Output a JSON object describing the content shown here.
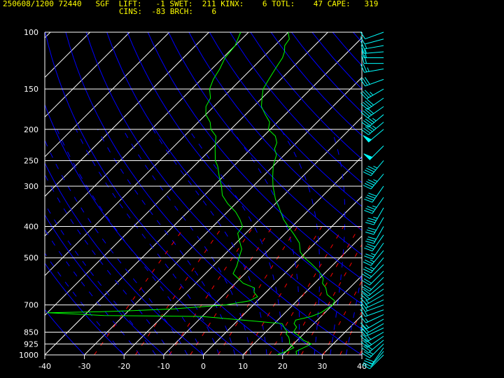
{
  "header": {
    "line1": "250608/1200 72440   SGF  LIFT:   -1 SWET:  211 KINX:    6 TOTL:    47 CAPE:   319",
    "line2": "CINS:  -83 BRCH:    6"
  },
  "colors": {
    "background": "#000000",
    "isobar": "#ffffff",
    "isotherm": "#ffffff",
    "dry_adiabat": "#0000ff",
    "moist_adiabat": "#0000ff",
    "mixing_ratio": "#ff0000",
    "temperature": "#00ff00",
    "dewpoint": "#00ff00",
    "wind_barbs": "#00ffff",
    "header_text": "#ffff00",
    "axis_text": "#ffffff"
  },
  "chart_data": {
    "type": "line",
    "subtype": "skew-t log-p",
    "xlabel": "",
    "ylabel": "",
    "xlim": [
      -40,
      40
    ],
    "ylim": [
      1000,
      100
    ],
    "x_ticks": [
      -40,
      -30,
      -20,
      -10,
      0,
      10,
      20,
      30,
      40
    ],
    "pressure_labels": [
      100,
      150,
      200,
      250,
      300,
      400,
      500,
      700,
      850,
      925,
      1000
    ],
    "series": [
      {
        "key": "temperature",
        "points": [
          [
            1000,
            23.5
          ],
          [
            975,
            22.5
          ],
          [
            950,
            23.5
          ],
          [
            925,
            24.5
          ],
          [
            900,
            21.5
          ],
          [
            870,
            19
          ],
          [
            850,
            17
          ],
          [
            820,
            16.5
          ],
          [
            800,
            15
          ],
          [
            780,
            14.5
          ],
          [
            760,
            17.5
          ],
          [
            740,
            19
          ],
          [
            720,
            19.5
          ],
          [
            700,
            20
          ],
          [
            680,
            19.5
          ],
          [
            650,
            16
          ],
          [
            620,
            14
          ],
          [
            600,
            12
          ],
          [
            580,
            11
          ],
          [
            550,
            8
          ],
          [
            520,
            4
          ],
          [
            500,
            1
          ],
          [
            480,
            -1.5
          ],
          [
            450,
            -4
          ],
          [
            420,
            -8
          ],
          [
            400,
            -11
          ],
          [
            380,
            -14
          ],
          [
            350,
            -18
          ],
          [
            330,
            -21
          ],
          [
            300,
            -25
          ],
          [
            280,
            -27.5
          ],
          [
            260,
            -30
          ],
          [
            250,
            -31
          ],
          [
            240,
            -32
          ],
          [
            230,
            -34
          ],
          [
            220,
            -35
          ],
          [
            210,
            -37
          ],
          [
            200,
            -40.5
          ],
          [
            190,
            -42
          ],
          [
            180,
            -45
          ],
          [
            170,
            -48
          ],
          [
            160,
            -50
          ],
          [
            150,
            -52
          ],
          [
            140,
            -53
          ],
          [
            130,
            -54
          ],
          [
            120,
            -55
          ],
          [
            115,
            -56
          ],
          [
            110,
            -57.5
          ],
          [
            105,
            -58
          ],
          [
            100,
            -60
          ]
        ]
      },
      {
        "key": "dewpoint",
        "points": [
          [
            1000,
            18.5
          ],
          [
            975,
            20
          ],
          [
            950,
            21
          ],
          [
            925,
            19
          ],
          [
            900,
            18
          ],
          [
            880,
            17
          ],
          [
            860,
            15.5
          ],
          [
            850,
            15.5
          ],
          [
            830,
            14
          ],
          [
            800,
            12
          ],
          [
            760,
            -10
          ],
          [
            755,
            -35
          ],
          [
            740,
            -50
          ],
          [
            735,
            -37
          ],
          [
            730,
            -30
          ],
          [
            720,
            -19
          ],
          [
            700,
            -7
          ],
          [
            680,
            -2
          ],
          [
            660,
            -1
          ],
          [
            640,
            -3
          ],
          [
            620,
            -4
          ],
          [
            600,
            -8
          ],
          [
            560,
            -13
          ],
          [
            530,
            -14
          ],
          [
            500,
            -15.5
          ],
          [
            470,
            -17
          ],
          [
            440,
            -20
          ],
          [
            420,
            -22
          ],
          [
            400,
            -22.5
          ],
          [
            380,
            -25
          ],
          [
            360,
            -28
          ],
          [
            340,
            -32
          ],
          [
            320,
            -35.5
          ],
          [
            300,
            -38
          ],
          [
            280,
            -41
          ],
          [
            260,
            -44
          ],
          [
            250,
            -46
          ],
          [
            230,
            -49
          ],
          [
            210,
            -52
          ],
          [
            200,
            -55
          ],
          [
            190,
            -57
          ],
          [
            180,
            -60
          ],
          [
            170,
            -62
          ],
          [
            160,
            -63
          ],
          [
            150,
            -65.5
          ],
          [
            140,
            -67
          ],
          [
            130,
            -68
          ],
          [
            120,
            -69.5
          ],
          [
            110,
            -70
          ],
          [
            100,
            -72
          ]
        ]
      }
    ],
    "wind_barbs": {
      "levels": [
        1000,
        975,
        950,
        925,
        900,
        875,
        850,
        825,
        800,
        775,
        750,
        725,
        700,
        675,
        650,
        625,
        600,
        575,
        550,
        525,
        500,
        475,
        450,
        425,
        400,
        375,
        350,
        325,
        300,
        275,
        250,
        225,
        200,
        190,
        180,
        170,
        160,
        150,
        140,
        130,
        125,
        120,
        115,
        110,
        105,
        100
      ],
      "directions_deg": [
        225,
        220,
        215,
        225,
        230,
        235,
        240,
        245,
        240,
        240,
        245,
        250,
        250,
        245,
        240,
        235,
        230,
        225,
        225,
        225,
        220,
        220,
        215,
        215,
        210,
        210,
        210,
        215,
        215,
        220,
        220,
        225,
        230,
        230,
        230,
        235,
        235,
        240,
        250,
        260,
        270,
        270,
        265,
        260,
        255,
        250
      ],
      "speeds_kt": [
        10,
        15,
        20,
        25,
        30,
        30,
        25,
        20,
        20,
        15,
        15,
        15,
        15,
        15,
        15,
        20,
        20,
        20,
        20,
        20,
        25,
        25,
        25,
        30,
        30,
        30,
        35,
        35,
        40,
        45,
        45,
        50,
        50,
        45,
        45,
        40,
        40,
        35,
        30,
        25,
        20,
        20,
        15,
        15,
        10,
        10
      ]
    }
  }
}
